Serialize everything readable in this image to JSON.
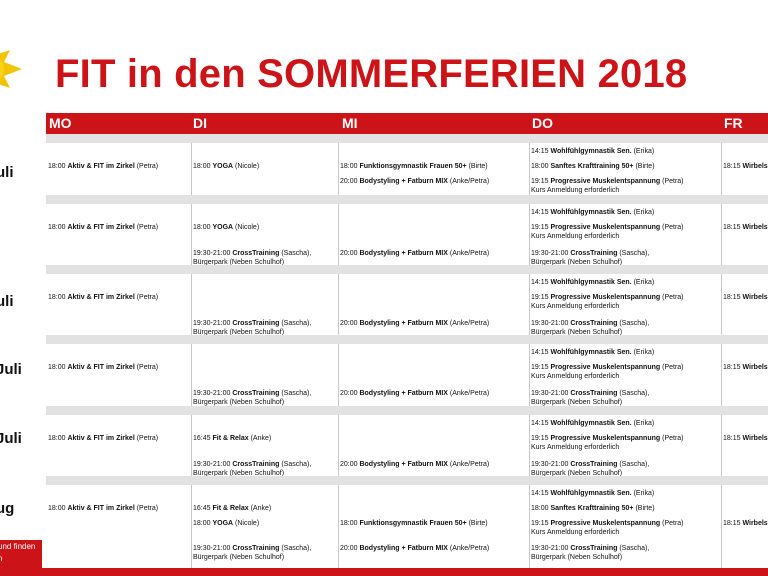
{
  "title": "FIT in den SOMMERFERIEN 2018",
  "days": [
    "MO",
    "DI",
    "MI",
    "DO",
    "FR"
  ],
  "week_labels": [
    "uli",
    "i",
    "uli",
    "Juli",
    "Juli",
    "ug"
  ],
  "footer_note": [
    "und finden",
    "n"
  ],
  "colors": {
    "accent": "#cc1418",
    "separator": "#e2e2e2"
  },
  "weeks": [
    {
      "mo": [
        "18:00 Aktiv & FIT im Zirkel (Petra)"
      ],
      "di": [
        "18:00 YOGA (Nicole)"
      ],
      "mi": [
        "18:00 Funktionsgymnastik Frauen 50+ (Birte)",
        "20:00 Bodystyling + Fatburn MIX (Anke/Petra)"
      ],
      "do": [
        "14:15 Wohlfühlgymnastik Sen. (Erika)",
        "18:00 Sanftes Krafttraining 50+ (Birte)",
        "19:15 Progressive Muskelentspannung (Petra)",
        "Kurs Anmeldung erforderlich"
      ],
      "fr": [
        "18:15 Wirbels"
      ]
    },
    {
      "mo": [
        "18:00 Aktiv & FIT im Zirkel (Petra)"
      ],
      "di": [
        "18:00 YOGA (Nicole)",
        "19:30-21:00 CrossTraining (Sascha),",
        "Bürgerpark (Neben Schulhof)"
      ],
      "mi": [
        "20:00 Bodystyling + Fatburn MIX (Anke/Petra)"
      ],
      "do": [
        "14:15 Wohlfühlgymnastik Sen. (Erika)",
        "19:15 Progressive Muskelentspannung (Petra)",
        "Kurs Anmeldung erforderlich",
        "19:30-21:00 CrossTraining (Sascha),",
        "Bürgerpark (Neben Schulhof)"
      ],
      "fr": [
        "18:15 Wirbels"
      ]
    },
    {
      "mo": [
        "18:00 Aktiv & FIT im Zirkel (Petra)"
      ],
      "di": [
        "19:30-21:00 CrossTraining (Sascha),",
        "Bürgerpark (Neben Schulhof)"
      ],
      "mi": [
        "20:00 Bodystyling + Fatburn MIX (Anke/Petra)"
      ],
      "do": [
        "14:15 Wohlfühlgymnastik Sen. (Erika)",
        "19:15 Progressive Muskelentspannung (Petra)",
        "Kurs Anmeldung erforderlich",
        "19:30-21:00 CrossTraining (Sascha),",
        "Bürgerpark (Neben Schulhof)"
      ],
      "fr": [
        "18:15 Wirbels"
      ]
    },
    {
      "mo": [
        "18:00 Aktiv & FIT im Zirkel (Petra)"
      ],
      "di": [
        "19:30-21:00 CrossTraining (Sascha),",
        "Bürgerpark (Neben Schulhof)"
      ],
      "mi": [
        "20:00 Bodystyling + Fatburn MIX (Anke/Petra)"
      ],
      "do": [
        "14:15 Wohlfühlgymnastik Sen. (Erika)",
        "19:15 Progressive Muskelentspannung (Petra)",
        "Kurs Anmeldung erforderlich",
        "19:30-21:00 CrossTraining (Sascha),",
        "Bürgerpark (Neben Schulhof)"
      ],
      "fr": [
        "18:15 Wirbels"
      ]
    },
    {
      "mo": [
        "18:00 Aktiv & FIT im Zirkel (Petra)"
      ],
      "di": [
        "16:45 Fit & Relax (Anke)",
        "19:30-21:00 CrossTraining (Sascha),",
        "Bürgerpark (Neben Schulhof)"
      ],
      "mi": [
        "20:00 Bodystyling + Fatburn MIX (Anke/Petra)"
      ],
      "do": [
        "14:15 Wohlfühlgymnastik Sen. (Erika)",
        "19:15 Progressive Muskelentspannung (Petra)",
        "Kurs Anmeldung erforderlich",
        "19:30-21:00 CrossTraining (Sascha),",
        "Bürgerpark (Neben Schulhof)"
      ],
      "fr": [
        "18:15 Wirbels"
      ]
    },
    {
      "mo": [
        "18:00 Aktiv & FIT im Zirkel (Petra)"
      ],
      "di": [
        "16:45 Fit & Relax (Anke)",
        "18:00 YOGA (Nicole)",
        "19:30-21:00 CrossTraining (Sascha),",
        "Bürgerpark (Neben Schulhof)"
      ],
      "mi": [
        "18:00 Funktionsgymnastik Frauen 50+ (Birte)",
        "20:00 Bodystyling + Fatburn MIX (Anke/Petra)"
      ],
      "do": [
        "14:15 Wohlfühlgymnastik Sen. (Erika)",
        "18:00 Sanftes Krafttraining 50+ (Birte)",
        "19:15 Progressive Muskelentspannung (Petra)",
        "Kurs Anmeldung erforderlich",
        "19:30-21:00 CrossTraining (Sascha),",
        "Bürgerpark (Neben Schulhof)"
      ],
      "fr": [
        "18:15 Wirbels"
      ]
    }
  ]
}
